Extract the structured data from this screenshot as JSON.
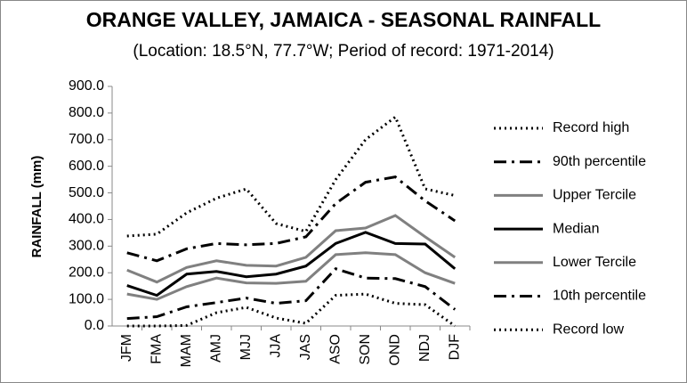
{
  "chart_data": {
    "type": "line",
    "title": "ORANGE VALLEY, JAMAICA - SEASONAL RAINFALL",
    "subtitle": "(Location: 18.5°N, 77.7°W; Period of record: 1971-2014)",
    "y_label": "RAINFALL (mm)",
    "categories": [
      "JFM",
      "FMA",
      "MAM",
      "AMJ",
      "MJJ",
      "JJA",
      "JAS",
      "ASO",
      "SON",
      "OND",
      "NDJ",
      "DJF"
    ],
    "ylim": [
      0,
      900
    ],
    "yticks": [
      {
        "value": 0,
        "label": "0.0"
      },
      {
        "value": 100,
        "label": "100.0"
      },
      {
        "value": 200,
        "label": "200.0"
      },
      {
        "value": 300,
        "label": "300.0"
      },
      {
        "value": 400,
        "label": "400.0"
      },
      {
        "value": 500,
        "label": "500.0"
      },
      {
        "value": 600,
        "label": "600.0"
      },
      {
        "value": 700,
        "label": "700.0"
      },
      {
        "value": 800,
        "label": "800.0"
      },
      {
        "value": 900,
        "label": "900.0"
      }
    ],
    "grid": false,
    "legend": "right",
    "series": [
      {
        "name": "Record high",
        "color": "#000000",
        "style": "dotted",
        "values": [
          338,
          345,
          425,
          480,
          515,
          385,
          355,
          550,
          700,
          785,
          515,
          490
        ]
      },
      {
        "name": "90th percentile",
        "color": "#000000",
        "style": "dashdot",
        "values": [
          275,
          245,
          290,
          310,
          305,
          310,
          335,
          460,
          540,
          560,
          470,
          395
        ]
      },
      {
        "name": "Upper Tercile",
        "color": "#808080",
        "style": "solid",
        "values": [
          210,
          165,
          220,
          245,
          228,
          225,
          258,
          358,
          368,
          415,
          335,
          258
        ]
      },
      {
        "name": "Median",
        "color": "#000000",
        "style": "solid",
        "values": [
          152,
          115,
          195,
          205,
          185,
          195,
          225,
          310,
          352,
          310,
          308,
          215
        ]
      },
      {
        "name": "Lower Tercile",
        "color": "#808080",
        "style": "solid",
        "values": [
          120,
          100,
          148,
          180,
          162,
          160,
          168,
          268,
          275,
          268,
          200,
          160
        ]
      },
      {
        "name": "10th percentile",
        "color": "#000000",
        "style": "dashdot",
        "values": [
          28,
          35,
          72,
          88,
          105,
          85,
          95,
          215,
          180,
          178,
          148,
          62
        ]
      },
      {
        "name": "Record low",
        "color": "#000000",
        "style": "dotted",
        "values": [
          0,
          0,
          2,
          50,
          70,
          30,
          10,
          115,
          120,
          85,
          80,
          0
        ]
      }
    ]
  }
}
